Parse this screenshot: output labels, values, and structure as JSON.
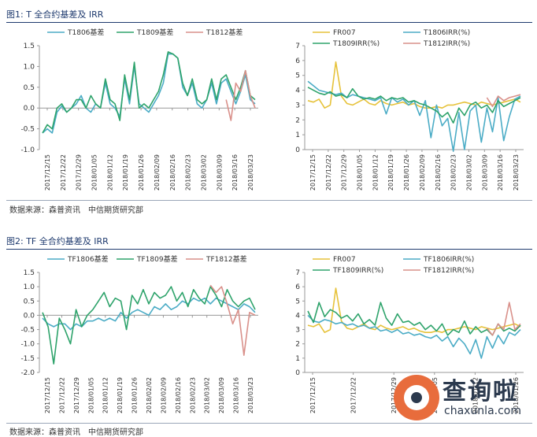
{
  "figures": [
    {
      "title": "图1: T 全合约基差及 IRR",
      "source": "数据来源：森普资讯　中信期货研究部",
      "charts": [
        {
          "type": "line",
          "ylim": [
            -1.0,
            1.5
          ],
          "yticks": [
            "1.5",
            "1.0",
            "0.5",
            "0.0",
            "-0.5",
            "-1.0"
          ],
          "xticks": [
            "2017/12/15",
            "2017/12/22",
            "2017/12/29",
            "2018/01/05",
            "2018/01/12",
            "2018/01/19",
            "2018/01/26",
            "2018/02/09",
            "2018/02/16",
            "2018/02/23",
            "2018/03/02",
            "2018/03/09",
            "2018/03/16",
            "2018/03/23"
          ],
          "legend": "top",
          "series": [
            {
              "name": "T1806基差",
              "color": "#4bacc6",
              "values": [
                -0.6,
                -0.5,
                -0.6,
                -0.1,
                0.05,
                -0.1,
                0.0,
                0.1,
                0.3,
                0.0,
                -0.1,
                0.1,
                0.0,
                0.6,
                0.1,
                0.0,
                -0.2,
                0.7,
                0.1,
                1.0,
                0.1,
                0.0,
                -0.1,
                0.1,
                0.3,
                0.6,
                1.3,
                1.3,
                1.2,
                0.5,
                0.3,
                0.6,
                0.1,
                0.0,
                0.2,
                0.6,
                0.1,
                0.6,
                0.7,
                0.4,
                0.1,
                0.4,
                0.8,
                0.2,
                0.1
              ]
            },
            {
              "name": "T1809基差",
              "color": "#2ea36b",
              "values": [
                -0.6,
                -0.4,
                -0.5,
                0.0,
                0.1,
                -0.1,
                0.0,
                0.2,
                0.2,
                0.0,
                0.3,
                0.1,
                0.0,
                0.7,
                0.2,
                0.1,
                -0.3,
                0.8,
                0.2,
                1.1,
                0.0,
                0.1,
                0.0,
                0.2,
                0.4,
                0.8,
                1.35,
                1.3,
                1.2,
                0.6,
                0.3,
                0.7,
                0.2,
                0.1,
                0.2,
                0.7,
                0.2,
                0.7,
                0.8,
                0.5,
                0.2,
                0.5,
                0.9,
                0.3,
                0.2
              ]
            },
            {
              "name": "T1812基差",
              "color": "#d9908a",
              "values": [
                null,
                null,
                null,
                null,
                null,
                null,
                null,
                null,
                null,
                null,
                null,
                null,
                null,
                null,
                null,
                null,
                null,
                null,
                null,
                null,
                null,
                null,
                null,
                null,
                null,
                null,
                null,
                null,
                null,
                null,
                null,
                null,
                null,
                null,
                null,
                null,
                null,
                null,
                0.2,
                -0.3,
                0.6,
                0.4,
                0.9,
                0.3,
                0.0
              ]
            }
          ]
        },
        {
          "type": "line",
          "ylim": [
            0,
            7
          ],
          "yticks": [
            "7",
            "6",
            "5",
            "4",
            "3",
            "2",
            "1",
            "0"
          ],
          "xticks": [
            "2017/12/15",
            "2017/12/22",
            "2017/12/29",
            "2018/01/05",
            "2018/01/12",
            "2018/01/19",
            "2018/01/26",
            "2018/02/09",
            "2018/02/16",
            "2018/02/23",
            "2018/03/02",
            "2018/03/09",
            "2018/03/16",
            "2018/03/23"
          ],
          "legend": "top",
          "series": [
            {
              "name": "FR007",
              "color": "#e6c23a",
              "values": [
                3.3,
                3.2,
                3.4,
                2.8,
                3.0,
                5.9,
                3.6,
                3.1,
                3.0,
                3.2,
                3.4,
                3.1,
                3.0,
                3.3,
                3.1,
                3.0,
                3.1,
                3.2,
                3.0,
                3.1,
                2.9,
                2.8,
                2.8,
                2.9,
                2.8,
                3.0,
                3.0,
                3.1,
                3.2,
                3.1,
                3.0,
                3.2,
                3.1,
                3.0,
                3.1,
                3.2,
                3.3,
                3.4,
                3.2
              ]
            },
            {
              "name": "T1806IRR(%)",
              "color": "#4bacc6",
              "values": [
                4.6,
                4.3,
                4.0,
                3.9,
                3.8,
                3.7,
                3.8,
                3.5,
                3.7,
                3.6,
                3.5,
                3.4,
                3.3,
                3.5,
                2.4,
                3.5,
                3.2,
                3.4,
                3.0,
                3.3,
                2.3,
                3.3,
                0.8,
                3.0,
                1.6,
                2.1,
                -0.1,
                2.5,
                0.0,
                2.6,
                3.0,
                0.5,
                2.8,
                1.2,
                3.5,
                0.6,
                2.2,
                3.4,
                3.6
              ]
            },
            {
              "name": "T1809IRR(%)",
              "color": "#2ea36b",
              "values": [
                4.2,
                4.0,
                3.8,
                3.7,
                3.9,
                3.6,
                3.7,
                3.5,
                4.1,
                3.6,
                3.4,
                3.5,
                3.4,
                3.6,
                3.3,
                3.5,
                3.4,
                3.5,
                3.2,
                3.3,
                3.1,
                3.0,
                2.8,
                2.6,
                2.2,
                2.5,
                1.8,
                2.8,
                2.3,
                3.0,
                3.2,
                2.8,
                3.0,
                2.5,
                3.3,
                2.9,
                3.1,
                3.3,
                3.5
              ]
            },
            {
              "name": "T1812IRR(%)",
              "color": "#d9908a",
              "values": [
                null,
                null,
                null,
                null,
                null,
                null,
                null,
                null,
                null,
                null,
                null,
                null,
                null,
                null,
                null,
                null,
                null,
                null,
                null,
                null,
                null,
                null,
                null,
                null,
                null,
                null,
                null,
                null,
                null,
                null,
                null,
                null,
                3.5,
                2.9,
                3.6,
                3.3,
                3.5,
                3.6,
                3.7
              ]
            }
          ]
        }
      ]
    },
    {
      "title": "图2: TF 全合约基差及 IRR",
      "source": "数据来源：森普资讯　中信期货研究部",
      "charts": [
        {
          "type": "line",
          "ylim": [
            -2.0,
            1.5
          ],
          "yticks": [
            "1.5",
            "1.0",
            "0.5",
            "0.0",
            "-0.5",
            "-1.0",
            "-1.5",
            "-2.0"
          ],
          "xticks": [
            "2017/12/15",
            "2017/12/22",
            "2017/12/29",
            "2018/01/05",
            "2018/01/12",
            "2018/01/19",
            "2018/01/26",
            "2018/02/02",
            "2018/02/09",
            "2018/02/16",
            "2018/02/23",
            "2018/03/02",
            "2018/03/09",
            "2018/03/16",
            "2018/03/23"
          ],
          "legend": "top",
          "series": [
            {
              "name": "TF1806基差",
              "color": "#4bacc6",
              "values": [
                -0.1,
                -0.3,
                -0.4,
                -0.3,
                -0.3,
                -0.5,
                -0.3,
                -0.4,
                -0.2,
                -0.2,
                -0.1,
                -0.2,
                -0.1,
                -0.2,
                0.1,
                -0.1,
                0.1,
                0.2,
                0.1,
                0.0,
                0.3,
                0.2,
                0.4,
                0.2,
                0.3,
                0.5,
                0.4,
                0.6,
                0.5,
                0.6,
                0.4,
                0.6,
                0.5,
                0.4,
                0.3,
                0.2,
                0.4,
                0.3,
                0.1
              ]
            },
            {
              "name": "TF1809基差",
              "color": "#2ea36b",
              "values": [
                0.1,
                -0.4,
                -1.7,
                -0.1,
                -0.5,
                -1.0,
                0.2,
                -0.4,
                0.0,
                0.2,
                0.5,
                0.8,
                0.3,
                0.6,
                0.5,
                -0.5,
                0.7,
                0.4,
                0.9,
                0.4,
                0.8,
                0.6,
                0.7,
                1.0,
                0.5,
                0.8,
                0.3,
                0.9,
                0.6,
                0.4,
                1.0,
                0.7,
                0.3,
                0.9,
                0.5,
                0.3,
                0.5,
                0.6,
                0.2
              ]
            },
            {
              "name": "TF1812基差",
              "color": "#d9908a",
              "values": [
                null,
                null,
                null,
                null,
                null,
                null,
                null,
                null,
                null,
                null,
                null,
                null,
                null,
                null,
                null,
                null,
                null,
                null,
                null,
                null,
                null,
                null,
                null,
                null,
                null,
                null,
                null,
                null,
                null,
                null,
                1.05,
                0.8,
                1.0,
                0.4,
                -0.3,
                0.2,
                -1.4,
                0.1,
                0.0
              ]
            }
          ]
        },
        {
          "type": "line",
          "ylim": [
            0,
            7
          ],
          "yticks": [
            "7",
            "6",
            "5",
            "4",
            "3",
            "2",
            "1",
            "0"
          ],
          "xticks": [
            "2017/12/15",
            "2017/12/22",
            "2017/12/29",
            "2018/01/05",
            "2018/01/12",
            "2018/01/26"
          ],
          "legend": "top",
          "series": [
            {
              "name": "FR007",
              "color": "#e6c23a",
              "values": [
                3.3,
                3.2,
                3.4,
                2.8,
                3.0,
                5.9,
                3.6,
                3.1,
                3.0,
                3.2,
                3.4,
                3.1,
                3.0,
                3.3,
                3.1,
                3.0,
                3.1,
                3.2,
                3.0,
                3.1,
                2.9,
                2.8,
                2.8,
                2.9,
                2.8,
                3.0,
                3.0,
                3.1,
                3.2,
                3.1,
                3.0,
                3.2,
                3.1,
                3.0,
                3.1,
                3.2,
                3.3,
                3.4,
                3.2
              ]
            },
            {
              "name": "TF1806IRR(%)",
              "color": "#4bacc6",
              "values": [
                4.0,
                3.6,
                3.5,
                3.7,
                3.6,
                3.4,
                3.5,
                3.3,
                3.4,
                3.2,
                3.3,
                3.1,
                3.2,
                2.9,
                3.0,
                2.8,
                3.0,
                2.7,
                2.8,
                2.6,
                2.7,
                2.5,
                2.4,
                2.6,
                2.2,
                2.5,
                1.8,
                2.4,
                2.0,
                1.3,
                2.3,
                1.0,
                2.5,
                1.7,
                2.6,
                2.0,
                2.8,
                2.6,
                3.0
              ]
            },
            {
              "name": "TF1809IRR(%)",
              "color": "#2ea36b",
              "values": [
                4.3,
                3.5,
                4.9,
                3.9,
                4.4,
                4.2,
                3.8,
                4.0,
                3.6,
                4.1,
                3.4,
                3.7,
                3.3,
                4.9,
                3.8,
                3.3,
                4.1,
                3.5,
                3.6,
                3.3,
                3.5,
                3.0,
                3.3,
                2.9,
                3.4,
                2.6,
                3.0,
                2.8,
                3.6,
                2.7,
                3.2,
                2.8,
                3.0,
                2.6,
                3.4,
                2.9,
                3.1,
                2.9,
                3.3
              ]
            },
            {
              "name": "TF1812IRR(%)",
              "color": "#d9908a",
              "values": [
                null,
                null,
                null,
                null,
                null,
                null,
                null,
                null,
                null,
                null,
                null,
                null,
                null,
                null,
                null,
                null,
                null,
                null,
                null,
                null,
                null,
                null,
                null,
                null,
                null,
                null,
                null,
                null,
                null,
                null,
                null,
                null,
                3.1,
                2.6,
                3.4,
                3.0,
                4.9,
                3.0,
                3.4
              ]
            }
          ]
        }
      ]
    }
  ],
  "watermark": {
    "main": "查询啦",
    "url": "chaxunla.com"
  }
}
